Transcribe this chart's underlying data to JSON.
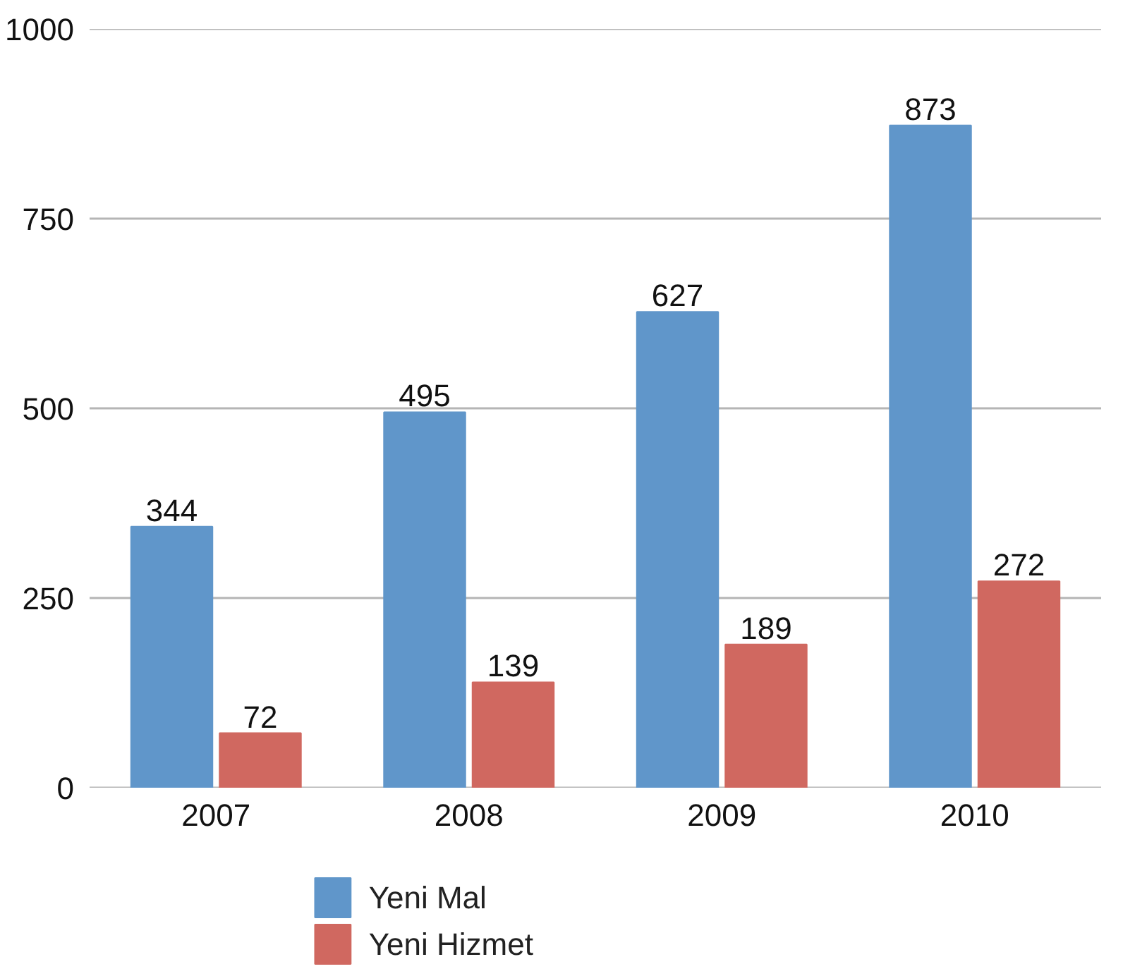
{
  "chart_data": {
    "type": "bar",
    "categories": [
      "2007",
      "2008",
      "2009",
      "2010"
    ],
    "series": [
      {
        "name": "Yeni Mal",
        "color": "#6096ca",
        "values": [
          344,
          495,
          627,
          873
        ]
      },
      {
        "name": "Yeni Hizmet",
        "color": "#d06860",
        "values": [
          72,
          139,
          189,
          272
        ]
      }
    ],
    "ylim": [
      0,
      1000
    ],
    "yticks": [
      0,
      250,
      500,
      750,
      1000
    ],
    "grid": "y",
    "legend": "bottom left",
    "data_labels": true
  }
}
